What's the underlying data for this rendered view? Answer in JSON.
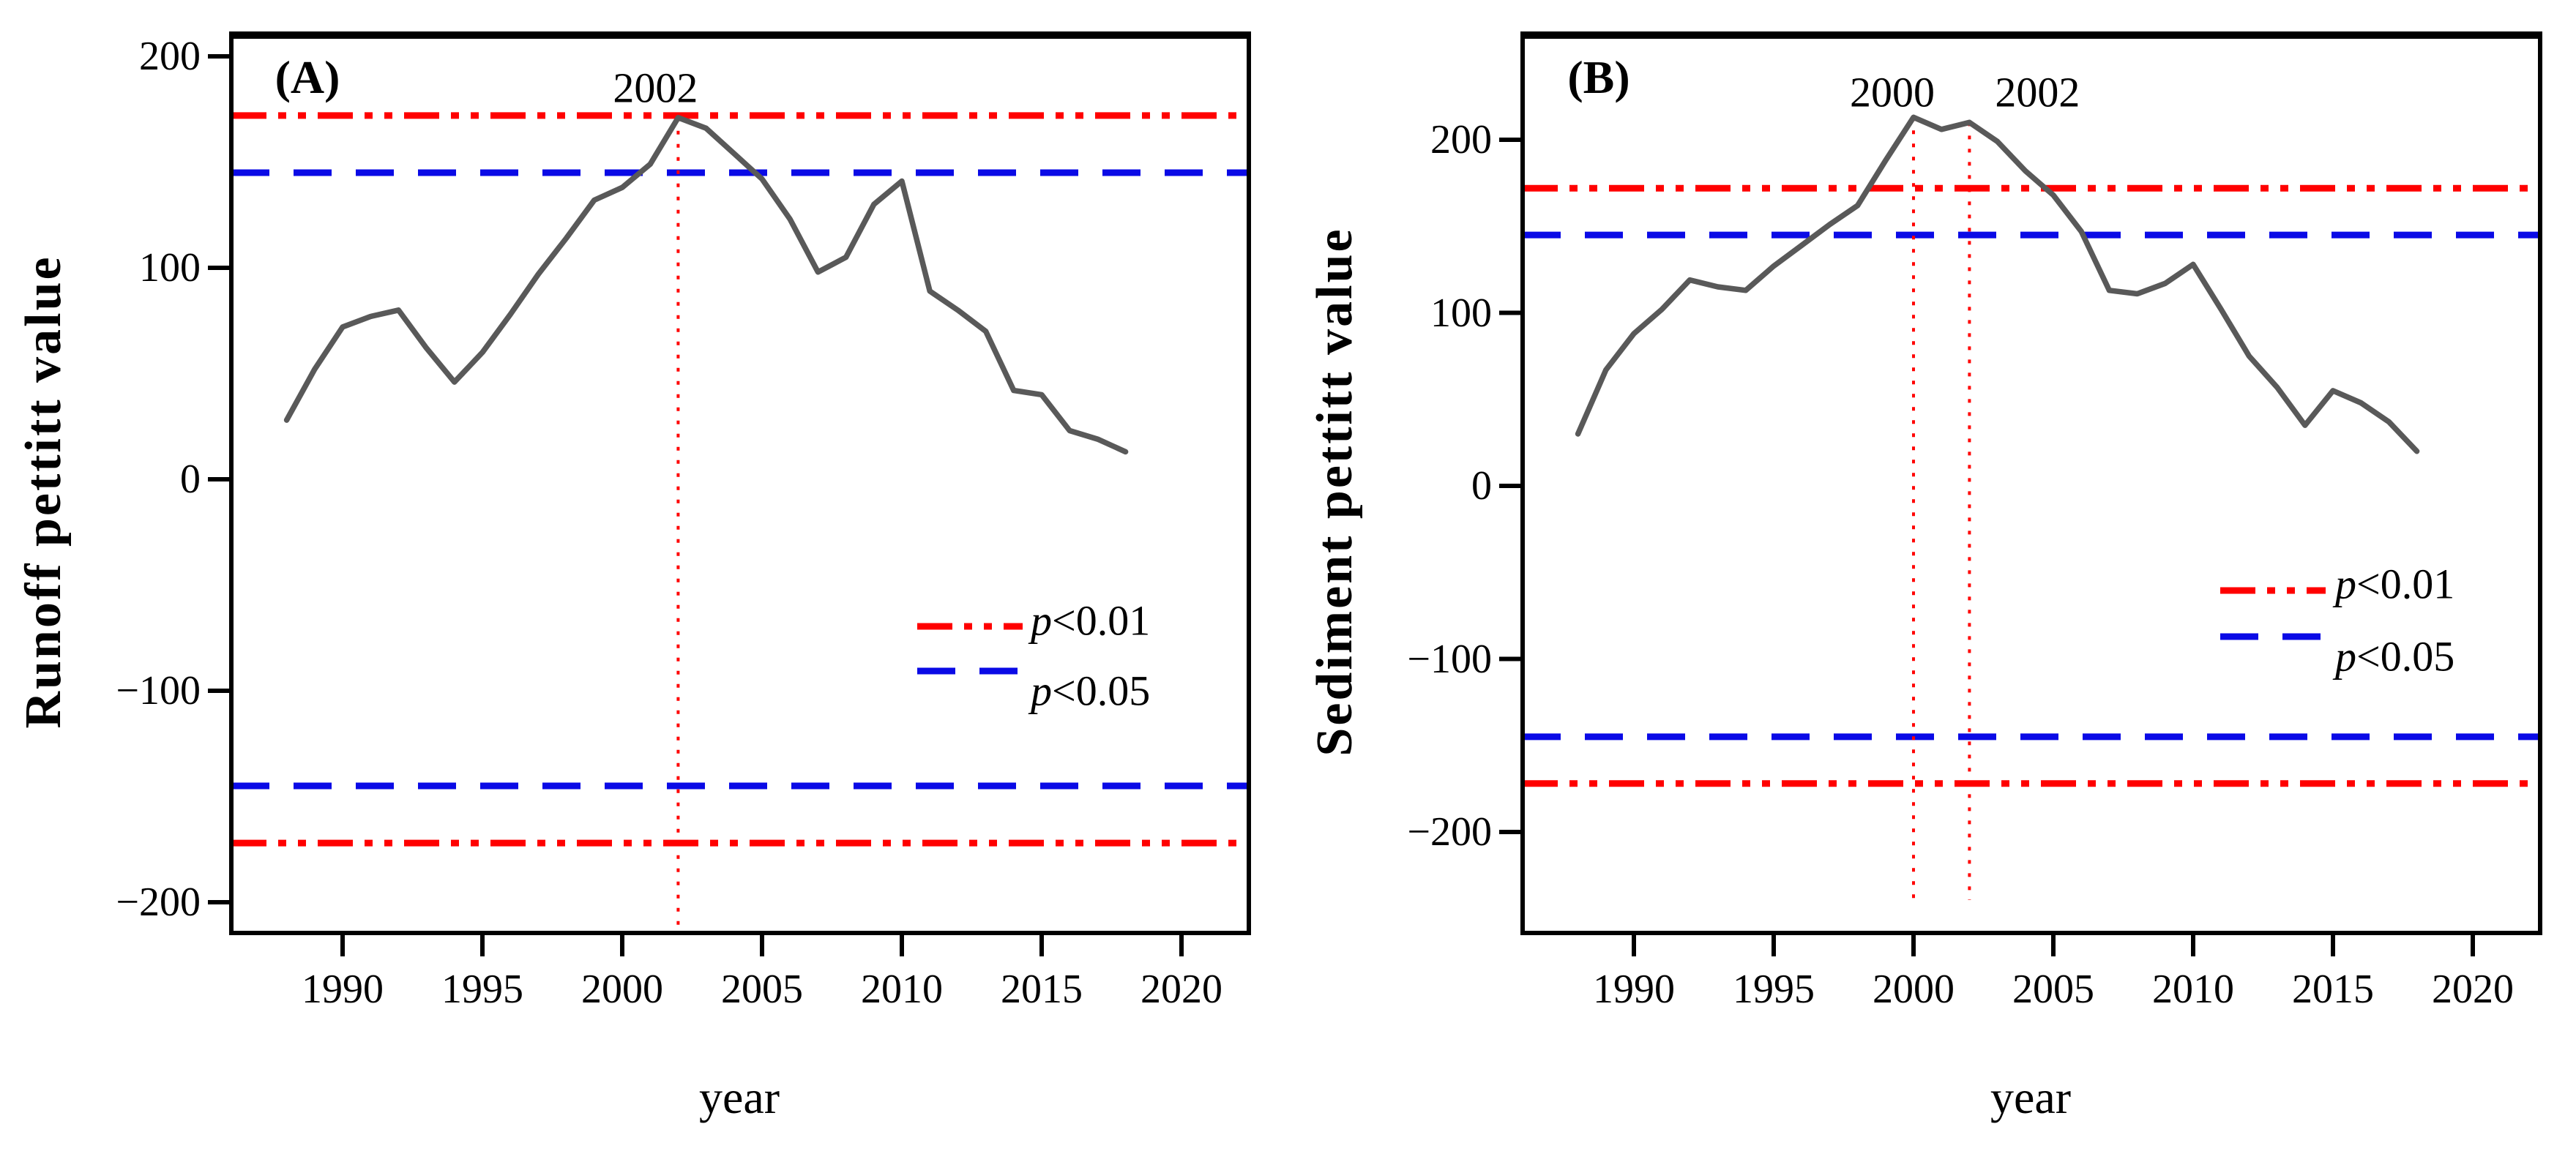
{
  "figure": {
    "background": "#ffffff",
    "colors": {
      "p001_red": "#ff0000",
      "p005_blue": "#0a0ae6",
      "series_gray": "#595959",
      "axis_black": "#000000"
    }
  },
  "chart_data": [
    {
      "type": "line",
      "panel_label": "(A)",
      "ylabel": "Runoff pettitt value",
      "xlabel": "year",
      "grid": false,
      "xlim": [
        1986.0,
        2022.4
      ],
      "ylim": [
        -214,
        210
      ],
      "x_ticks": [
        {
          "v": 1990,
          "label": "1990"
        },
        {
          "v": 1995,
          "label": "1995"
        },
        {
          "v": 2000,
          "label": "2000"
        },
        {
          "v": 2005,
          "label": "2005"
        },
        {
          "v": 2010,
          "label": "2010"
        },
        {
          "v": 2015,
          "label": "2015"
        },
        {
          "v": 2020,
          "label": "2020"
        }
      ],
      "y_ticks": [
        {
          "v": 200,
          "label": "200"
        },
        {
          "v": 100,
          "label": "100"
        },
        {
          "v": 0,
          "label": "0"
        },
        {
          "v": -100,
          "label": "−100"
        },
        {
          "v": -200,
          "label": "−200"
        }
      ],
      "series": [
        {
          "name": "runoff-pettitt-statistic",
          "x": [
            1988,
            1989,
            1990,
            1991,
            1992,
            1993,
            1994,
            1995,
            1996,
            1997,
            1998,
            1999,
            2000,
            2001,
            2002,
            2003,
            2004,
            2005,
            2006,
            2007,
            2008,
            2009,
            2010,
            2011,
            2012,
            2013,
            2014,
            2015,
            2016,
            2017,
            2018
          ],
          "values": [
            28,
            52,
            72,
            77,
            80,
            62,
            46,
            60,
            78,
            97,
            114,
            132,
            138,
            149,
            171,
            166,
            154,
            142,
            123,
            98,
            105,
            130,
            141,
            89,
            80,
            70,
            42,
            40,
            23,
            19,
            13
          ]
        }
      ],
      "thresholds": [
        {
          "label": "p<0.01",
          "value": 172,
          "mirrored": true,
          "color_key": "p001_red",
          "style": "dash-dot-dot"
        },
        {
          "label": "p<0.05",
          "value": 145,
          "mirrored": true,
          "color_key": "p005_blue",
          "style": "dashed"
        }
      ],
      "change_points": [
        {
          "year": 2002,
          "label": "2002",
          "peak_value": 171
        }
      ],
      "legend": {
        "position": "inside-lower-right",
        "entries": [
          {
            "label": "p<0.01",
            "color_key": "p001_red",
            "style": "dash-dot-dot"
          },
          {
            "label": "p<0.05",
            "color_key": "p005_blue",
            "style": "dashed"
          }
        ]
      }
    },
    {
      "type": "line",
      "panel_label": "(B)",
      "ylabel": "Sediment pettitt value",
      "xlabel": "year",
      "grid": false,
      "xlim": [
        1986.0,
        2022.4
      ],
      "ylim": [
        -258,
        260
      ],
      "x_ticks": [
        {
          "v": 1990,
          "label": "1990"
        },
        {
          "v": 1995,
          "label": "1995"
        },
        {
          "v": 2000,
          "label": "2000"
        },
        {
          "v": 2005,
          "label": "2005"
        },
        {
          "v": 2010,
          "label": "2010"
        },
        {
          "v": 2015,
          "label": "2015"
        },
        {
          "v": 2020,
          "label": "2020"
        }
      ],
      "y_ticks": [
        {
          "v": 200,
          "label": "200"
        },
        {
          "v": 100,
          "label": "100"
        },
        {
          "v": 0,
          "label": "0"
        },
        {
          "v": -100,
          "label": "−100"
        },
        {
          "v": -200,
          "label": "−200"
        }
      ],
      "series": [
        {
          "name": "sediment-pettitt-statistic",
          "x": [
            1988,
            1989,
            1990,
            1991,
            1992,
            1993,
            1994,
            1995,
            1996,
            1997,
            1998,
            1999,
            2000,
            2001,
            2002,
            2003,
            2004,
            2005,
            2006,
            2007,
            2008,
            2009,
            2010,
            2011,
            2012,
            2013,
            2014,
            2015,
            2016,
            2017,
            2018
          ],
          "values": [
            30,
            67,
            88,
            102,
            119,
            115,
            113,
            127,
            139,
            151,
            162,
            188,
            213,
            206,
            210,
            199,
            182,
            168,
            147,
            113,
            111,
            117,
            128,
            102,
            75,
            57,
            35,
            55,
            48,
            37,
            20
          ]
        }
      ],
      "thresholds": [
        {
          "label": "p<0.01",
          "value": 172,
          "mirrored": true,
          "color_key": "p001_red",
          "style": "dash-dot-dot"
        },
        {
          "label": "p<0.05",
          "value": 145,
          "mirrored": true,
          "color_key": "p005_blue",
          "style": "dashed"
        }
      ],
      "change_points": [
        {
          "year": 2000,
          "label": "2000",
          "peak_value": 213
        },
        {
          "year": 2002,
          "label": "2002",
          "peak_value": 210
        }
      ],
      "legend": {
        "position": "inside-lower-right",
        "entries": [
          {
            "label": "p<0.01",
            "color_key": "p001_red",
            "style": "dash-dot-dot"
          },
          {
            "label": "p<0.05",
            "color_key": "p005_blue",
            "style": "dashed"
          }
        ]
      }
    }
  ]
}
